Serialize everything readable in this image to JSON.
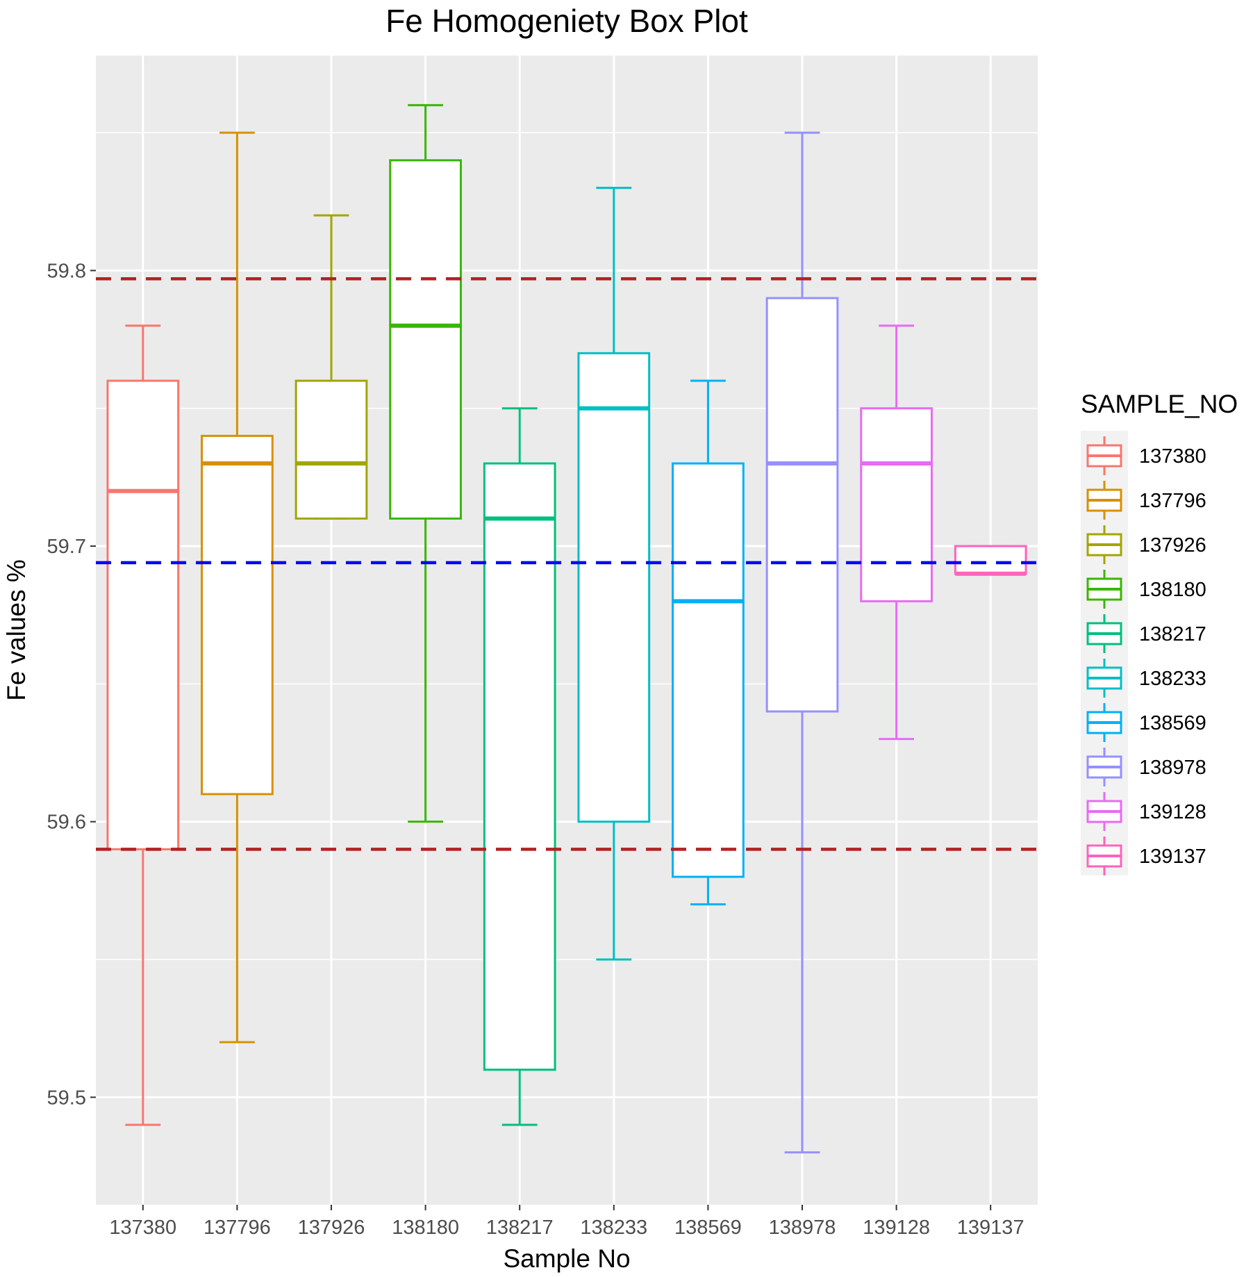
{
  "chart_data": {
    "type": "box",
    "title": "Fe Homogeniety Box Plot",
    "xlabel": "Sample No",
    "ylabel": "Fe values %",
    "ylim": [
      59.461,
      59.878
    ],
    "yticks": [
      59.5,
      59.6,
      59.7,
      59.8
    ],
    "ytick_labels": [
      "59.5",
      "59.6",
      "59.7",
      "59.8"
    ],
    "grid": true,
    "legend": {
      "title": "SAMPLE_NO",
      "position": "right"
    },
    "reference_lines": [
      {
        "y": 59.797,
        "color": "#b22222",
        "style": "dashed"
      },
      {
        "y": 59.694,
        "color": "#0000ff",
        "style": "dashed"
      },
      {
        "y": 59.59,
        "color": "#b22222",
        "style": "dashed"
      }
    ],
    "categories": [
      "137380",
      "137796",
      "137926",
      "138180",
      "138217",
      "138233",
      "138569",
      "138978",
      "139128",
      "139137"
    ],
    "series": [
      {
        "name": "137380",
        "color": "#F8766D",
        "min": 59.49,
        "q1": 59.59,
        "median": 59.72,
        "q3": 59.76,
        "max": 59.78
      },
      {
        "name": "137796",
        "color": "#D89000",
        "min": 59.52,
        "q1": 59.61,
        "median": 59.73,
        "q3": 59.74,
        "max": 59.85
      },
      {
        "name": "137926",
        "color": "#A3A500",
        "min": 59.71,
        "q1": 59.71,
        "median": 59.73,
        "q3": 59.76,
        "max": 59.82
      },
      {
        "name": "138180",
        "color": "#39B600",
        "min": 59.6,
        "q1": 59.71,
        "median": 59.78,
        "q3": 59.84,
        "max": 59.86
      },
      {
        "name": "138217",
        "color": "#00BF7D",
        "min": 59.49,
        "q1": 59.51,
        "median": 59.71,
        "q3": 59.73,
        "max": 59.75
      },
      {
        "name": "138233",
        "color": "#00BFC4",
        "min": 59.55,
        "q1": 59.6,
        "median": 59.75,
        "q3": 59.77,
        "max": 59.83
      },
      {
        "name": "138569",
        "color": "#00B0F6",
        "min": 59.57,
        "q1": 59.58,
        "median": 59.68,
        "q3": 59.73,
        "max": 59.76
      },
      {
        "name": "138978",
        "color": "#9590FF",
        "min": 59.48,
        "q1": 59.64,
        "median": 59.73,
        "q3": 59.79,
        "max": 59.85
      },
      {
        "name": "139128",
        "color": "#E76BF3",
        "min": 59.63,
        "q1": 59.68,
        "median": 59.73,
        "q3": 59.75,
        "max": 59.78
      },
      {
        "name": "139137",
        "color": "#FF62BC",
        "min": 59.69,
        "q1": 59.69,
        "median": 59.69,
        "q3": 59.7,
        "max": 59.7
      }
    ]
  }
}
